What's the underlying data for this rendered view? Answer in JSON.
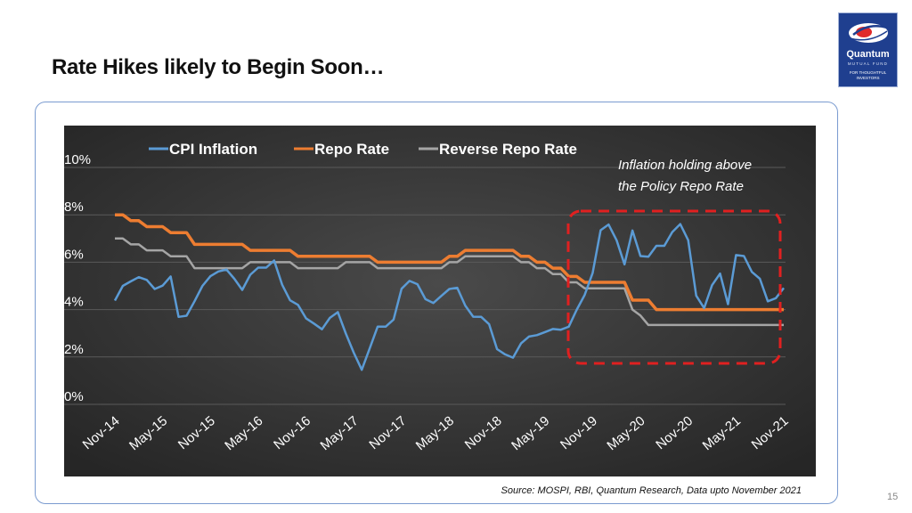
{
  "slide": {
    "title": "Rate Hikes likely to Begin Soon…",
    "source": "Source: MOSPI, RBI, Quantum Research, Data upto November 2021",
    "page_number": "15"
  },
  "logo": {
    "brand": "Quantum",
    "sub": "MUTUAL FUND",
    "tagline_1": "FOR THOUGHTFUL",
    "tagline_2": "INVESTORS"
  },
  "colors": {
    "cpi": "#5b9bd5",
    "repo": "#ed7d31",
    "reverse_repo": "#a5a5a5",
    "highlight": "#e02020",
    "plot_bg": "#3a3a3a"
  },
  "chart_data": {
    "type": "line",
    "title": "",
    "xlabel": "",
    "ylabel": "",
    "ylim": [
      0,
      10
    ],
    "grid": true,
    "legend": "top",
    "y_ticks": [
      "0%",
      "2%",
      "4%",
      "6%",
      "8%",
      "10%"
    ],
    "x_tick_labels": [
      "Nov-14",
      "May-15",
      "Nov-15",
      "May-16",
      "Nov-16",
      "May-17",
      "Nov-17",
      "May-18",
      "Nov-18",
      "May-19",
      "Nov-19",
      "May-20",
      "Nov-20",
      "May-21",
      "Nov-21"
    ],
    "x_start": "Nov-14",
    "x_end": "Nov-21",
    "annotation": [
      "Inflation holding above",
      "the Policy Repo Rate"
    ],
    "series": [
      {
        "name": "CPI Inflation",
        "values": [
          4.38,
          5.0,
          5.19,
          5.37,
          5.25,
          4.87,
          5.01,
          5.4,
          3.69,
          3.74,
          4.35,
          5.0,
          5.41,
          5.61,
          5.69,
          5.3,
          4.83,
          5.47,
          5.77,
          5.77,
          6.07,
          5.05,
          4.39,
          4.2,
          3.63,
          3.41,
          3.17,
          3.65,
          3.89,
          2.99,
          2.18,
          1.46,
          2.36,
          3.28,
          3.28,
          3.58,
          4.88,
          5.21,
          5.07,
          4.44,
          4.28,
          4.58,
          4.87,
          4.92,
          4.17,
          3.7,
          3.69,
          3.38,
          2.33,
          2.11,
          1.97,
          2.57,
          2.86,
          2.92,
          3.05,
          3.18,
          3.15,
          3.28,
          3.99,
          4.62,
          5.54,
          7.35,
          7.59,
          6.93,
          5.91,
          7.34,
          6.26,
          6.23,
          6.69,
          6.69,
          7.27,
          7.61,
          6.93,
          4.59,
          4.06,
          5.03,
          5.52,
          4.23,
          6.3,
          6.26,
          5.59,
          5.3,
          4.35,
          4.48,
          4.91
        ]
      },
      {
        "name": "Repo Rate",
        "values": [
          8.0,
          8.0,
          7.75,
          7.75,
          7.5,
          7.5,
          7.5,
          7.25,
          7.25,
          7.25,
          6.75,
          6.75,
          6.75,
          6.75,
          6.75,
          6.75,
          6.75,
          6.5,
          6.5,
          6.5,
          6.5,
          6.5,
          6.5,
          6.25,
          6.25,
          6.25,
          6.25,
          6.25,
          6.25,
          6.25,
          6.25,
          6.25,
          6.25,
          6.0,
          6.0,
          6.0,
          6.0,
          6.0,
          6.0,
          6.0,
          6.0,
          6.0,
          6.25,
          6.25,
          6.5,
          6.5,
          6.5,
          6.5,
          6.5,
          6.5,
          6.5,
          6.25,
          6.25,
          6.0,
          6.0,
          5.75,
          5.75,
          5.4,
          5.4,
          5.15,
          5.15,
          5.15,
          5.15,
          5.15,
          5.15,
          4.4,
          4.4,
          4.4,
          4.0,
          4.0,
          4.0,
          4.0,
          4.0,
          4.0,
          4.0,
          4.0,
          4.0,
          4.0,
          4.0,
          4.0,
          4.0,
          4.0,
          4.0,
          4.0,
          4.0
        ]
      },
      {
        "name": "Reverse Repo Rate",
        "values": [
          7.0,
          7.0,
          6.75,
          6.75,
          6.5,
          6.5,
          6.5,
          6.25,
          6.25,
          6.25,
          5.75,
          5.75,
          5.75,
          5.75,
          5.75,
          5.75,
          5.75,
          6.0,
          6.0,
          6.0,
          6.0,
          6.0,
          6.0,
          5.75,
          5.75,
          5.75,
          5.75,
          5.75,
          5.75,
          6.0,
          6.0,
          6.0,
          6.0,
          5.75,
          5.75,
          5.75,
          5.75,
          5.75,
          5.75,
          5.75,
          5.75,
          5.75,
          6.0,
          6.0,
          6.25,
          6.25,
          6.25,
          6.25,
          6.25,
          6.25,
          6.25,
          6.0,
          6.0,
          5.75,
          5.75,
          5.5,
          5.5,
          5.15,
          5.15,
          4.9,
          4.9,
          4.9,
          4.9,
          4.9,
          4.9,
          4.0,
          3.75,
          3.35,
          3.35,
          3.35,
          3.35,
          3.35,
          3.35,
          3.35,
          3.35,
          3.35,
          3.35,
          3.35,
          3.35,
          3.35,
          3.35,
          3.35,
          3.35,
          3.35,
          3.35
        ]
      }
    ]
  }
}
